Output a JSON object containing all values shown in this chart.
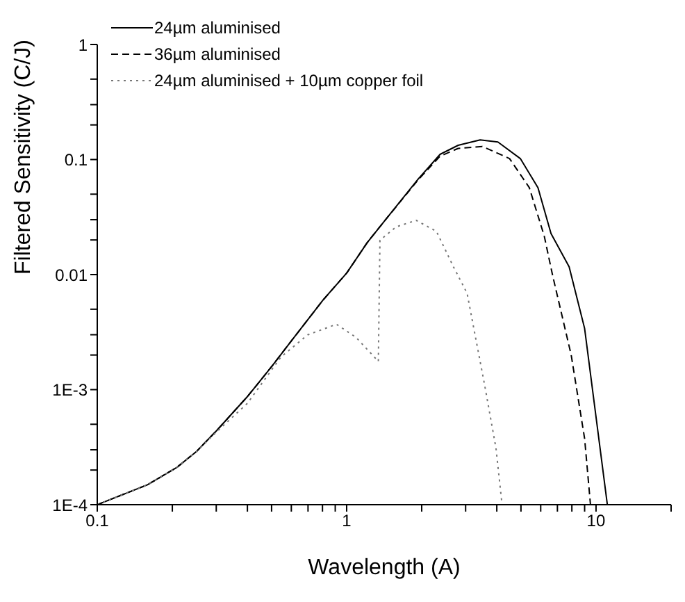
{
  "chart_data": {
    "type": "line",
    "xlabel": "Wavelength (A)",
    "ylabel": "Filtered Sensitivity (C/J)",
    "log": "xy",
    "legend": "top",
    "marker": "none",
    "xlim": [
      0.1,
      20
    ],
    "xticks": [
      0.1,
      {
        "value": 0.2,
        "label": null
      },
      {
        "value": 0.3,
        "label": null
      },
      {
        "value": 0.4,
        "label": null
      },
      {
        "value": 0.5,
        "label": null
      },
      {
        "value": 0.6,
        "label": null
      },
      {
        "value": 0.7,
        "label": null
      },
      {
        "value": 0.8,
        "label": null
      },
      {
        "value": 0.9,
        "label": null
      },
      1,
      {
        "value": 2,
        "label": null
      },
      {
        "value": 3,
        "label": null
      },
      {
        "value": 4,
        "label": null
      },
      {
        "value": 5,
        "label": null
      },
      {
        "value": 6,
        "label": null
      },
      {
        "value": 7,
        "label": null
      },
      {
        "value": 8,
        "label": null
      },
      {
        "value": 9,
        "label": null
      },
      10,
      {
        "value": 20,
        "label": null
      }
    ],
    "ylim": [
      0.0001,
      1
    ],
    "yticks": [
      {
        "value": 0.0001,
        "label": "1E-4"
      },
      {
        "value": 0.0002,
        "label": null
      },
      {
        "value": 0.0003,
        "label": null
      },
      {
        "value": 0.0005,
        "label": null
      },
      {
        "value": 0.001,
        "label": "1E-3"
      },
      {
        "value": 0.002,
        "label": null
      },
      {
        "value": 0.003,
        "label": null
      },
      {
        "value": 0.005,
        "label": null
      },
      0.01,
      {
        "value": 0.02,
        "label": null
      },
      {
        "value": 0.03,
        "label": null
      },
      {
        "value": 0.05,
        "label": null
      },
      0.1,
      {
        "value": 0.2,
        "label": null
      },
      {
        "value": 0.3,
        "label": null
      },
      {
        "value": 0.5,
        "label": null
      },
      1
    ],
    "series": [
      {
        "name": "24µm aluminised",
        "color": "#000000",
        "line_style": "solid",
        "x": [
          0.1,
          0.159,
          0.208,
          0.25,
          0.301,
          0.4,
          0.502,
          0.604,
          0.804,
          1.0,
          1.21,
          1.45,
          1.94,
          2.37,
          2.8,
          3.43,
          4.04,
          4.97,
          5.85,
          6.6,
          7.8,
          9.0,
          10.1,
          11.1
        ],
        "values": [
          0.0001,
          0.000149,
          0.00021,
          0.00029,
          0.00044,
          0.00087,
          0.0016,
          0.0027,
          0.006,
          0.0103,
          0.019,
          0.031,
          0.068,
          0.111,
          0.133,
          0.148,
          0.142,
          0.102,
          0.057,
          0.0227,
          0.0117,
          0.0034,
          0.00049,
          0.0001
        ]
      },
      {
        "name": "36µm aluminised",
        "color": "#000000",
        "line_style": "dashed",
        "x": [
          0.1,
          0.159,
          0.208,
          0.25,
          0.301,
          0.4,
          0.502,
          0.604,
          0.804,
          1.0,
          1.21,
          1.45,
          1.94,
          2.37,
          2.8,
          3.5,
          4.5,
          5.4,
          6.2,
          6.7,
          7.95,
          9.0,
          9.5
        ],
        "values": [
          0.0001,
          0.000149,
          0.00021,
          0.00029,
          0.00044,
          0.00087,
          0.0016,
          0.0027,
          0.006,
          0.0103,
          0.019,
          0.031,
          0.067,
          0.107,
          0.125,
          0.13,
          0.102,
          0.057,
          0.0216,
          0.0098,
          0.002,
          0.000375,
          0.0001
        ]
      },
      {
        "name": "24µm aluminised + 10µm copper foil",
        "color": "#777777",
        "line_style": "dotted",
        "x": [
          0.1,
          0.159,
          0.208,
          0.25,
          0.301,
          0.4,
          0.545,
          0.697,
          0.91,
          1.09,
          1.34,
          1.36,
          1.58,
          1.9,
          2.29,
          2.68,
          3.04,
          3.58,
          3.97,
          4.2
        ],
        "values": [
          0.0001,
          0.000149,
          0.00021,
          0.00029,
          0.00043,
          0.00076,
          0.00192,
          0.00299,
          0.0037,
          0.00285,
          0.00176,
          0.0199,
          0.026,
          0.0296,
          0.0238,
          0.0117,
          0.0069,
          0.00108,
          0.00031,
          0.0001
        ]
      }
    ]
  }
}
